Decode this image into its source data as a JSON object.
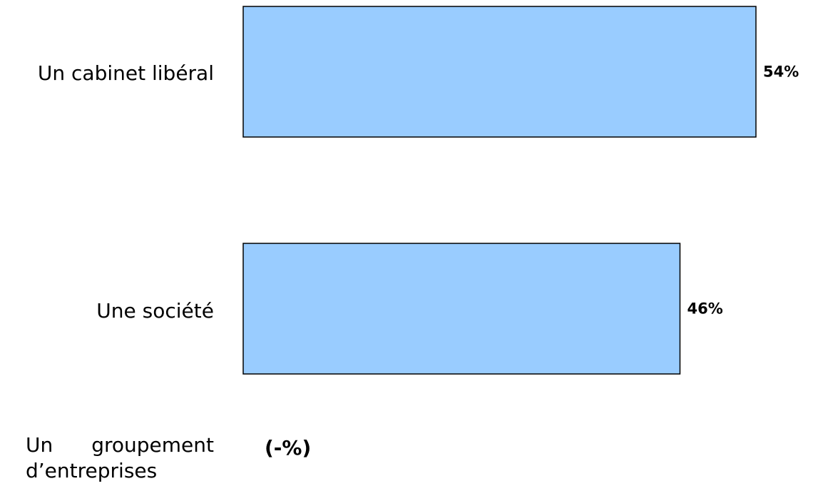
{
  "chart_data": {
    "type": "bar",
    "orientation": "horizontal",
    "title": "",
    "xlabel": "",
    "ylabel": "",
    "categories": [
      "Un cabinet libéral",
      "Une société",
      "Un groupement d’entreprises"
    ],
    "category_label_lines": {
      "groupement_line1": "Un groupement",
      "groupement_line2": "d’entreprises"
    },
    "values": [
      54,
      46,
      null
    ],
    "value_labels": [
      "54%",
      "46%",
      "(-%)"
    ],
    "xlim": [
      0,
      54
    ],
    "grid": false,
    "legend": "none",
    "bar_color": "#99ccff",
    "bar_border_color": "#000000"
  }
}
